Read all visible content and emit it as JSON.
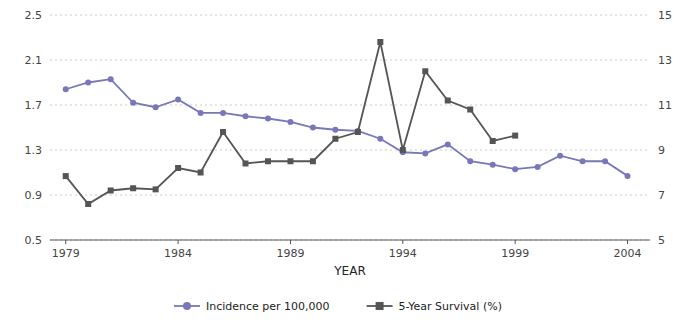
{
  "chart_data": {
    "type": "line",
    "xlabel": "YEAR",
    "series": [
      {
        "name": "Incidence per 100,000",
        "color": "#7878b8",
        "marker": "circle",
        "axis": "y",
        "x": [
          1979,
          1980,
          1981,
          1982,
          1983,
          1984,
          1985,
          1986,
          1987,
          1988,
          1989,
          1990,
          1991,
          1992,
          1993,
          1994,
          1995,
          1996,
          1997,
          1998,
          1999,
          2000,
          2001,
          2002,
          2003,
          2004
        ],
        "values": [
          1.84,
          1.9,
          1.93,
          1.72,
          1.68,
          1.75,
          1.63,
          1.63,
          1.6,
          1.58,
          1.55,
          1.5,
          1.48,
          1.47,
          1.4,
          1.28,
          1.27,
          1.35,
          1.2,
          1.17,
          1.13,
          1.15,
          1.25,
          1.2,
          1.2,
          1.07
        ]
      },
      {
        "name": "5-Year Survival (%)",
        "color": "#555555",
        "marker": "square",
        "axis": "y2",
        "x": [
          1979,
          1980,
          1981,
          1982,
          1983,
          1984,
          1985,
          1986,
          1987,
          1988,
          1989,
          1990,
          1991,
          1992,
          1993,
          1994,
          1995,
          1996,
          1997,
          1998,
          1999
        ],
        "values": [
          7.84,
          6.6,
          7.2,
          7.3,
          7.25,
          8.2,
          8.0,
          9.8,
          8.4,
          8.5,
          8.5,
          8.5,
          9.5,
          9.8,
          13.8,
          9.0,
          12.5,
          11.2,
          10.8,
          9.4,
          9.64
        ]
      }
    ],
    "xlim": [
      1978.3,
      2005.0
    ],
    "xticks": [
      1979,
      1984,
      1989,
      1994,
      1999,
      2004
    ],
    "ylim": [
      0.5,
      2.5
    ],
    "yticks": [
      0.5,
      0.9,
      1.3,
      1.7,
      2.1,
      2.5
    ],
    "y2lim": [
      5.0,
      15.0
    ],
    "y2ticks": [
      5,
      7,
      9,
      11,
      13,
      15
    ],
    "grid": true,
    "legend": "bottom"
  }
}
